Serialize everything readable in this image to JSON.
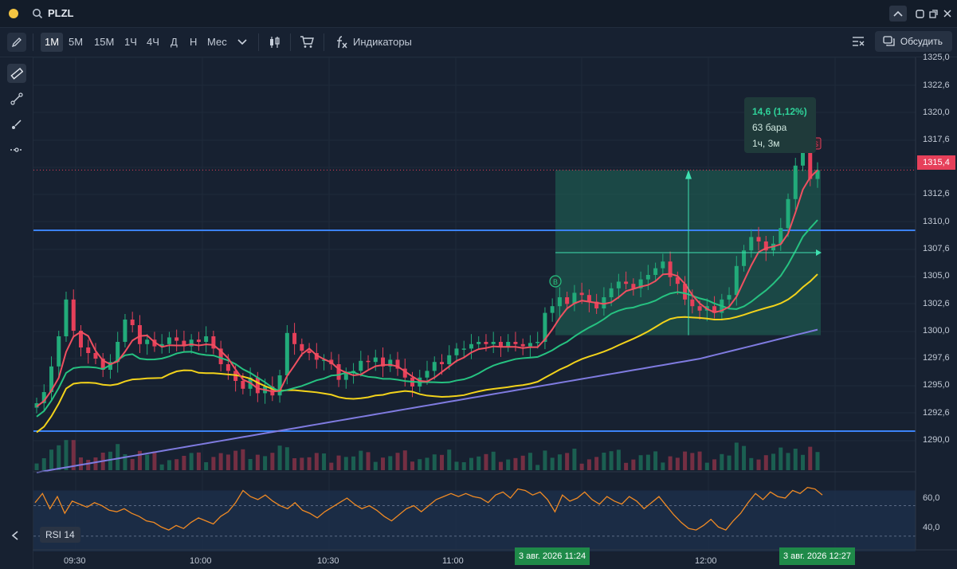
{
  "titlebar": {
    "symbol": "PLZL"
  },
  "toolbar": {
    "timeframes": [
      "1М",
      "5М",
      "15М",
      "1Ч",
      "4Ч",
      "Д",
      "Н",
      "Мес"
    ],
    "active_timeframe": "1М",
    "indicators_label": "Индикаторы",
    "discuss_label": "Обсудить"
  },
  "colors": {
    "background": "#172131",
    "candle_up": "#22ab7a",
    "candle_down": "#e6405a",
    "ma_fast": "#ef5060",
    "ma_mid": "#26c281",
    "ma_slow": "#f2d21b",
    "ma_long": "#7f7be0",
    "level_line": "#3b82f6",
    "rsi_line": "#f08a24",
    "measure_fill": "#1f6a57",
    "tag_green": "#1f8a49"
  },
  "price_axis": {
    "labels": [
      "1325,0",
      "1322,6",
      "1320,0",
      "1317,6",
      "1312,6",
      "1310,0",
      "1307,6",
      "1305,0",
      "1302,6",
      "1300,0",
      "1297,6",
      "1295,0",
      "1292,6",
      "1290,0"
    ],
    "current_price": "1315,4"
  },
  "time_axis": {
    "labels": [
      "09:30",
      "10:00",
      "10:30",
      "11:00",
      "12:00"
    ],
    "range_start": "3 авг. 2026 11:24",
    "range_end": "3 авг. 2026 12:27"
  },
  "measure": {
    "change": "14,6 (1,12%)",
    "bars": "63 бара",
    "duration": "1ч, 3м"
  },
  "markers": {
    "buy": "B",
    "sell": "S"
  },
  "rsi": {
    "label": "RSI 14",
    "levels": [
      "60,0",
      "40,0"
    ]
  },
  "chart_data": {
    "type": "line",
    "instrument": "PLZL",
    "timeframe": "1М",
    "ylim": [
      1288.5,
      1325.5
    ],
    "horizontal_levels": [
      1310.0,
      1292.0
    ],
    "close": [
      1294.5,
      1295.5,
      1297.8,
      1300.5,
      1303.8,
      1301.0,
      1299.5,
      1299.0,
      1298.5,
      1297.5,
      1298.2,
      1300.0,
      1302.0,
      1301.5,
      1299.8,
      1300.2,
      1299.6,
      1299.8,
      1300.4,
      1300.1,
      1299.6,
      1300.2,
      1300.0,
      1300.5,
      1299.4,
      1298.0,
      1297.4,
      1296.5,
      1295.8,
      1296.8,
      1295.4,
      1296.0,
      1295.2,
      1297.0,
      1300.8,
      1299.8,
      1299.2,
      1299.0,
      1298.4,
      1298.4,
      1298.0,
      1296.6,
      1297.2,
      1297.4,
      1298.3,
      1298.2,
      1298.6,
      1297.8,
      1298.4,
      1297.6,
      1296.8,
      1296.0,
      1296.8,
      1297.4,
      1298.2,
      1298.0,
      1298.8,
      1299.4,
      1299.4,
      1299.8,
      1300.0,
      1299.8,
      1300.0,
      1299.6,
      1300.0,
      1299.8,
      1299.6,
      1299.9,
      1300.0,
      1302.6,
      1303.2,
      1304.0,
      1303.4,
      1304.4,
      1304.2,
      1303.6,
      1303.0,
      1304.0,
      1304.8,
      1305.4,
      1305.2,
      1304.8,
      1305.6,
      1306.0,
      1306.6,
      1307.2,
      1305.8,
      1305.2,
      1303.8,
      1303.2,
      1302.8,
      1303.2,
      1302.6,
      1303.8,
      1304.2,
      1306.8,
      1308.2,
      1309.4,
      1309.0,
      1308.2,
      1308.8,
      1310.2,
      1312.8,
      1315.8,
      1317.0,
      1314.6,
      1315.4
    ],
    "rsi": [
      62,
      68,
      58,
      66,
      55,
      63,
      61,
      59,
      62,
      60,
      57,
      56,
      58,
      55,
      53,
      50,
      49,
      46,
      44,
      47,
      45,
      49,
      52,
      50,
      48,
      53,
      56,
      62,
      70,
      66,
      64,
      67,
      63,
      60,
      58,
      62,
      57,
      55,
      52,
      56,
      59,
      62,
      65,
      61,
      58,
      60,
      57,
      53,
      50,
      54,
      58,
      60,
      56,
      60,
      64,
      66,
      68,
      66,
      68,
      66,
      65,
      62,
      67,
      69,
      65,
      71,
      70,
      67,
      69,
      64,
      56,
      67,
      63,
      65,
      69,
      64,
      61,
      66,
      63,
      61,
      66,
      63,
      58,
      62,
      66,
      60,
      54,
      49,
      45,
      44,
      47,
      51,
      46,
      44,
      50,
      55,
      62,
      68,
      64,
      69,
      66,
      65,
      70,
      68,
      72,
      71,
      67
    ]
  }
}
